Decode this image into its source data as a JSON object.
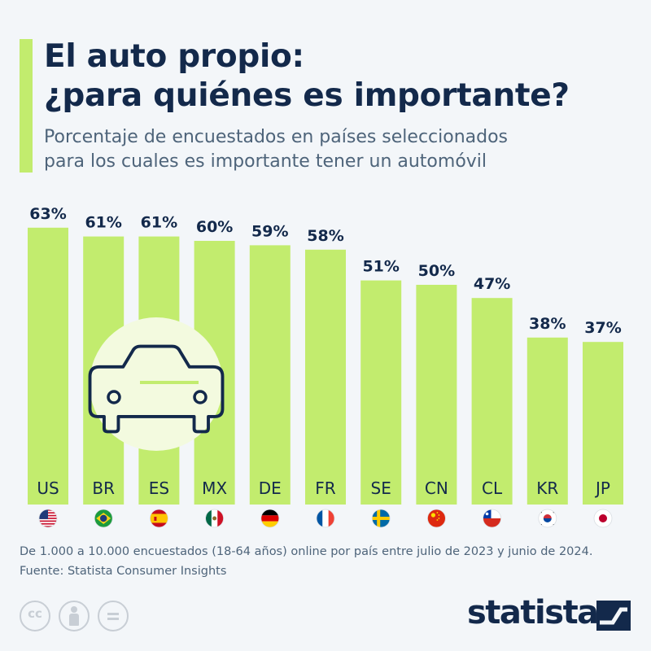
{
  "header": {
    "title_line1": "El auto propio:",
    "title_line2": "¿para quiénes es importante?",
    "subtitle_line1": "Porcentaje de encuestados en países seleccionados",
    "subtitle_line2": "para los cuales es importante tener un automóvil"
  },
  "colors": {
    "accent": "#c2ec6e",
    "bar": "#c2ec6e",
    "text": "#13294b",
    "background": "#f3f6f9"
  },
  "icons": [
    "car-icon",
    "flag-us",
    "flag-br",
    "flag-es",
    "flag-mx",
    "flag-de",
    "flag-fr",
    "flag-se",
    "flag-cn",
    "flag-cl",
    "flag-kr",
    "flag-jp",
    "cc-icon",
    "by-icon",
    "nd-icon",
    "statista-logo"
  ],
  "chart_data": {
    "type": "bar",
    "categories": [
      "US",
      "BR",
      "ES",
      "MX",
      "DE",
      "FR",
      "SE",
      "CN",
      "CL",
      "KR",
      "JP"
    ],
    "values": [
      63,
      61,
      61,
      60,
      59,
      58,
      51,
      50,
      47,
      38,
      37
    ],
    "value_labels": [
      "63%",
      "61%",
      "61%",
      "60%",
      "59%",
      "58%",
      "51%",
      "50%",
      "47%",
      "38%",
      "37%"
    ],
    "unit": "%",
    "ylim": [
      0,
      100
    ],
    "grid": false,
    "legend": "none"
  },
  "footer": {
    "note": "De 1.000 a 10.000 encuestados (18-64 años) online por país entre julio de 2023 y junio de 2024.",
    "source": "Fuente: Statista Consumer Insights",
    "brand": "statista"
  }
}
